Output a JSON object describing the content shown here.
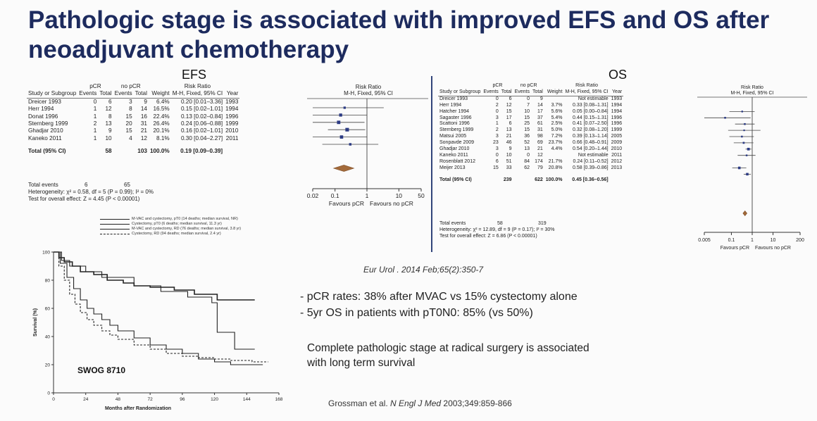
{
  "slide": {
    "title": "Pathologic stage is associated with improved EFS and OS after neoadjuvant chemotherapy",
    "citation_top": "Eur Urol . 2014 Feb;65(2):350-7",
    "bullets": [
      "- pCR rates: 38% after MVAC vs 15% cystectomy alone",
      "- 5yr OS in patients with pT0N0: 85% (vs 50%)"
    ],
    "conclusion": "Complete pathologic stage at radical surgery is associated with long term survival",
    "reference": {
      "authors": "Grossman et al. ",
      "journal": "N Engl J Med",
      "details": " 2003;349:859-866"
    }
  },
  "headers": {
    "group1": "pCR",
    "group2": "no pCR",
    "rr": "Risk Ratio",
    "study": "Study or Subgroup",
    "events": "Events",
    "total": "Total",
    "weight": "Weight",
    "method": "M-H, Fixed, 95% CI",
    "year": "Year"
  },
  "chart_data": [
    {
      "type": "forest",
      "label": "EFS",
      "studies": [
        {
          "name": "Dreicer 1993",
          "e1": "0",
          "t1": "6",
          "e2": "3",
          "t2": "9",
          "weight": "6.4%",
          "ci": "0.20 [0.01–3.36]",
          "year": "1993",
          "rr": 0.2,
          "lo": 0.01,
          "hi": 3.36
        },
        {
          "name": "Herr 1994",
          "e1": "1",
          "t1": "12",
          "e2": "8",
          "t2": "14",
          "weight": "16.5%",
          "ci": "0.15 [0.02–1.01]",
          "year": "1994",
          "rr": 0.15,
          "lo": 0.02,
          "hi": 1.01
        },
        {
          "name": "Donat 1996",
          "e1": "1",
          "t1": "8",
          "e2": "15",
          "t2": "16",
          "weight": "22.4%",
          "ci": "0.13 [0.02–0.84]",
          "year": "1996",
          "rr": 0.13,
          "lo": 0.02,
          "hi": 0.84
        },
        {
          "name": "Sternberg 1999",
          "e1": "2",
          "t1": "13",
          "e2": "20",
          "t2": "31",
          "weight": "26.4%",
          "ci": "0.24 [0.06–0.88]",
          "year": "1999",
          "rr": 0.24,
          "lo": 0.06,
          "hi": 0.88
        },
        {
          "name": "Ghadjar 2010",
          "e1": "1",
          "t1": "9",
          "e2": "15",
          "t2": "21",
          "weight": "20.1%",
          "ci": "0.16 [0.02–1.01]",
          "year": "2010",
          "rr": 0.16,
          "lo": 0.02,
          "hi": 1.01
        },
        {
          "name": "Kaneko 2011",
          "e1": "1",
          "t1": "10",
          "e2": "4",
          "t2": "12",
          "weight": "8.1%",
          "ci": "0.30 [0.04–2.27]",
          "year": "2011",
          "rr": 0.3,
          "lo": 0.04,
          "hi": 2.27
        }
      ],
      "total": {
        "name": "Total (95% CI)",
        "t1": "58",
        "t2": "103",
        "weight": "100.0%",
        "ci": "0.19 [0.09–0.39]",
        "rr": 0.19,
        "lo": 0.09,
        "hi": 0.39
      },
      "total_events": {
        "name": "Total events",
        "e1": "6",
        "e2": "65"
      },
      "heterogeneity": "Heterogeneity: χ² = 0.58, df = 5 (P = 0.99); I² = 0%",
      "overall_effect": "Test for overall effect: Z = 4.45 (P < 0.00001)",
      "axis_ticks": [
        0.02,
        0.1,
        1,
        10,
        50
      ],
      "axis_tick_labels": [
        "0.02",
        "0.1",
        "1",
        "10",
        "50"
      ],
      "favours_left": "Favours pCR",
      "favours_right": "Favours no pCR"
    },
    {
      "type": "forest",
      "label": "OS",
      "studies": [
        {
          "name": "Dreicer 1993",
          "e1": "0",
          "t1": "6",
          "e2": "0",
          "t2": "9",
          "weight": "",
          "ci": "Not estimable",
          "year": "1993"
        },
        {
          "name": "Herr 1994",
          "e1": "2",
          "t1": "12",
          "e2": "7",
          "t2": "14",
          "weight": "3.7%",
          "ci": "0.33 [0.08–1.31]",
          "year": "1994",
          "rr": 0.33,
          "lo": 0.08,
          "hi": 1.31
        },
        {
          "name": "Hatcher 1994",
          "e1": "0",
          "t1": "15",
          "e2": "10",
          "t2": "17",
          "weight": "5.6%",
          "ci": "0.05 [0.00–0.84]",
          "year": "1994",
          "rr": 0.05,
          "lo": 0.003,
          "hi": 0.84
        },
        {
          "name": "Sagaster 1996",
          "e1": "3",
          "t1": "17",
          "e2": "15",
          "t2": "37",
          "weight": "5.4%",
          "ci": "0.44 [0.15–1.31]",
          "year": "1996",
          "rr": 0.44,
          "lo": 0.15,
          "hi": 1.31
        },
        {
          "name": "Scattoni 1996",
          "e1": "1",
          "t1": "6",
          "e2": "25",
          "t2": "61",
          "weight": "2.5%",
          "ci": "0.41 [0.07–2.50]",
          "year": "1996",
          "rr": 0.41,
          "lo": 0.07,
          "hi": 2.5
        },
        {
          "name": "Sternberg 1999",
          "e1": "2",
          "t1": "13",
          "e2": "15",
          "t2": "31",
          "weight": "5.0%",
          "ci": "0.32 [0.08–1.20]",
          "year": "1999",
          "rr": 0.32,
          "lo": 0.08,
          "hi": 1.2
        },
        {
          "name": "Matsui 2005",
          "e1": "3",
          "t1": "21",
          "e2": "36",
          "t2": "98",
          "weight": "7.2%",
          "ci": "0.39 [0.13–1.14]",
          "year": "2005",
          "rr": 0.39,
          "lo": 0.13,
          "hi": 1.14
        },
        {
          "name": "Sonpavde 2009",
          "e1": "23",
          "t1": "46",
          "e2": "52",
          "t2": "69",
          "weight": "23.7%",
          "ci": "0.66 [0.48–0.91]",
          "year": "2009",
          "rr": 0.66,
          "lo": 0.48,
          "hi": 0.91
        },
        {
          "name": "Ghadjar 2010",
          "e1": "3",
          "t1": "9",
          "e2": "13",
          "t2": "21",
          "weight": "4.4%",
          "ci": "0.54 [0.20–1.44]",
          "year": "2010",
          "rr": 0.54,
          "lo": 0.2,
          "hi": 1.44
        },
        {
          "name": "Kaneko 2011",
          "e1": "0",
          "t1": "10",
          "e2": "0",
          "t2": "12",
          "weight": "",
          "ci": "Not estimable",
          "year": "2011"
        },
        {
          "name": "Rosenblatt 2012",
          "e1": "6",
          "t1": "51",
          "e2": "84",
          "t2": "174",
          "weight": "21.7%",
          "ci": "0.24 [0.11–0.52]",
          "year": "2012",
          "rr": 0.24,
          "lo": 0.11,
          "hi": 0.52
        },
        {
          "name": "Meijer 2013",
          "e1": "15",
          "t1": "33",
          "e2": "62",
          "t2": "79",
          "weight": "20.8%",
          "ci": "0.58 [0.39–0.86]",
          "year": "2013",
          "rr": 0.58,
          "lo": 0.39,
          "hi": 0.86
        }
      ],
      "total": {
        "name": "Total (95% CI)",
        "t1": "239",
        "t2": "622",
        "weight": "100.0%",
        "ci": "0.45 [0.36–0.56]",
        "rr": 0.45,
        "lo": 0.36,
        "hi": 0.56
      },
      "total_events": {
        "name": "Total events",
        "e1": "58",
        "e2": "319"
      },
      "heterogeneity": "Heterogeneity: χ² = 12.89, df = 9 (P = 0.17); I² = 30%",
      "overall_effect": "Test for overall effect: Z = 6.86 (P < 0.00001)",
      "axis_ticks": [
        0.005,
        0.1,
        1,
        10,
        200
      ],
      "axis_tick_labels": [
        "0.005",
        "0.1",
        "1",
        "10",
        "200"
      ],
      "favours_left": "Favours pCR",
      "favours_right": "Favours no pCR"
    },
    {
      "type": "line",
      "label": "SWOG 8710",
      "xlabel": "Months after Randomization",
      "ylabel": "Survival (%)",
      "xlim": [
        0,
        168
      ],
      "ylim": [
        0,
        100
      ],
      "x_ticks": [
        0,
        24,
        48,
        72,
        96,
        120,
        144,
        168
      ],
      "y_ticks": [
        0,
        20,
        40,
        60,
        80,
        100
      ],
      "series": [
        {
          "name": "M-VAC and cystectomy, pT0 (14 deaths; median survival, NR)",
          "dash": "",
          "width": 1.6,
          "points": [
            [
              0,
              100
            ],
            [
              4,
              96
            ],
            [
              8,
              93
            ],
            [
              14,
              90
            ],
            [
              20,
              86
            ],
            [
              30,
              84
            ],
            [
              40,
              80
            ],
            [
              52,
              78
            ],
            [
              60,
              76
            ],
            [
              72,
              75
            ],
            [
              90,
              73
            ],
            [
              105,
              70
            ],
            [
              122,
              66
            ],
            [
              150,
              66
            ]
          ]
        },
        {
          "name": "Cystectomy, pT0 (6 deaths; median survival, 11.3 yr)",
          "dash": "",
          "width": 1.1,
          "points": [
            [
              0,
              100
            ],
            [
              6,
              94
            ],
            [
              12,
              90
            ],
            [
              24,
              86
            ],
            [
              36,
              82
            ],
            [
              60,
              76
            ],
            [
              80,
              72
            ],
            [
              100,
              68
            ],
            [
              118,
              64
            ],
            [
              122,
              64
            ],
            [
              122,
              43
            ],
            [
              135,
              43
            ],
            [
              135,
              31
            ],
            [
              150,
              31
            ]
          ]
        },
        {
          "name": "M-VAC and cystectomy, RD (76 deaths; median survival, 3.8 yr)",
          "dash": "",
          "width": 1.1,
          "points": [
            [
              0,
              100
            ],
            [
              5,
              92
            ],
            [
              10,
              82
            ],
            [
              15,
              74
            ],
            [
              20,
              66
            ],
            [
              25,
              60
            ],
            [
              30,
              56
            ],
            [
              36,
              52
            ],
            [
              42,
              48
            ],
            [
              48,
              44
            ],
            [
              60,
              39
            ],
            [
              72,
              34
            ],
            [
              84,
              31
            ],
            [
              96,
              28
            ],
            [
              108,
              24
            ],
            [
              120,
              22
            ],
            [
              132,
              20
            ],
            [
              144,
              20
            ],
            [
              156,
              20
            ]
          ]
        },
        {
          "name": "Cystectomy, RD (94 deaths; median survival, 2.4 yr)",
          "dash": "3,2",
          "width": 1.1,
          "points": [
            [
              0,
              100
            ],
            [
              4,
              90
            ],
            [
              8,
              80
            ],
            [
              12,
              70
            ],
            [
              16,
              63
            ],
            [
              20,
              57
            ],
            [
              25,
              52
            ],
            [
              30,
              48
            ],
            [
              36,
              44
            ],
            [
              42,
              41
            ],
            [
              48,
              38
            ],
            [
              60,
              34
            ],
            [
              72,
              31
            ],
            [
              84,
              28
            ],
            [
              96,
              26
            ],
            [
              108,
              25
            ],
            [
              120,
              24
            ],
            [
              132,
              23
            ],
            [
              148,
              22
            ],
            [
              160,
              22
            ]
          ]
        }
      ]
    }
  ]
}
